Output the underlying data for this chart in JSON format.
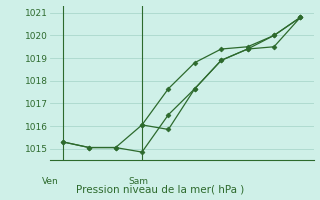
{
  "line1_x": [
    0,
    1,
    2,
    3,
    4,
    5,
    6,
    7,
    8,
    9
  ],
  "line1_y": [
    1015.3,
    1015.05,
    1015.05,
    1016.05,
    1017.65,
    1018.8,
    1019.4,
    1019.5,
    1020.0,
    1020.8
  ],
  "line2_x": [
    0,
    1,
    2,
    3,
    4,
    5,
    6,
    7,
    8,
    9
  ],
  "line2_y": [
    1015.3,
    1015.05,
    1015.05,
    1014.85,
    1016.5,
    1017.65,
    1018.9,
    1019.4,
    1019.5,
    1020.8
  ],
  "line3_x": [
    3,
    4,
    5,
    6,
    7,
    8,
    9
  ],
  "line3_y": [
    1016.05,
    1015.85,
    1017.65,
    1018.9,
    1019.4,
    1020.0,
    1020.8
  ],
  "color": "#2d6a2d",
  "bg_color": "#cff0e8",
  "grid_color": "#aad8cc",
  "xlabel": "Pression niveau de la mer( hPa )",
  "ven_x": 0,
  "sam_x": 3,
  "ylim_min": 1014.5,
  "ylim_max": 1021.3,
  "yticks": [
    1015,
    1016,
    1017,
    1018,
    1019,
    1020,
    1021
  ],
  "xlim_min": -0.5,
  "xlim_max": 9.5,
  "markersize": 2.5
}
